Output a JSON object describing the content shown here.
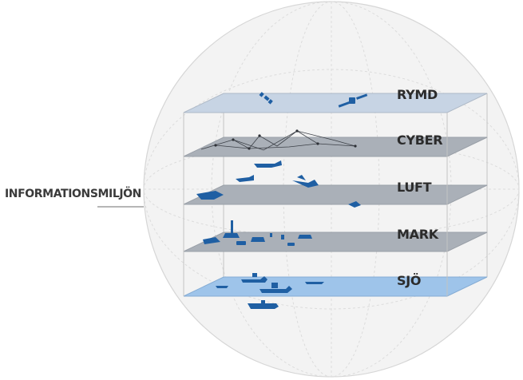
{
  "diagram": {
    "outer_label": "INFORMATIONSMILJÖN",
    "layers": [
      {
        "id": "rymd",
        "label": "RYMD",
        "color": "#c7d4e4"
      },
      {
        "id": "cyber",
        "label": "CYBER",
        "color": "#aab0b8"
      },
      {
        "id": "luft",
        "label": "LUFT",
        "color": "#aab0b8"
      },
      {
        "id": "mark",
        "label": "MARK",
        "color": "#aab0b8"
      },
      {
        "id": "sjo",
        "label": "SJÖ",
        "color": "#9ec4ea"
      }
    ],
    "accent_color": "#1f5fa3",
    "globe_color": "#f4f4f4"
  }
}
